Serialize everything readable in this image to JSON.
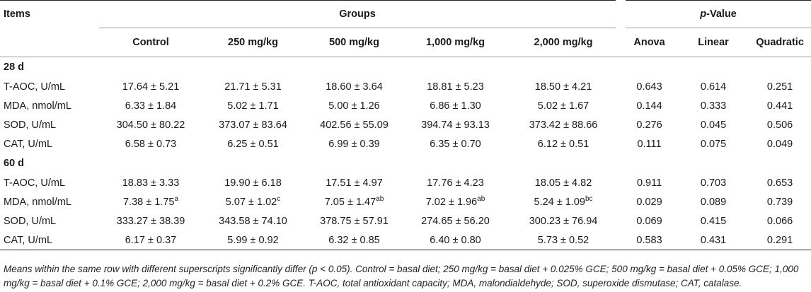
{
  "header": {
    "items": "Items",
    "groups": "Groups",
    "pvalue_italic": "p",
    "pvalue_rest": "-Value",
    "group_cols": [
      "Control",
      "250 mg/kg",
      "500 mg/kg",
      "1,000 mg/kg",
      "2,000 mg/kg"
    ],
    "p_cols": [
      "Anova",
      "Linear",
      "Quadratic"
    ]
  },
  "sections": [
    {
      "label": "28 d",
      "rows": [
        {
          "item": "T-AOC, U/mL",
          "vals": [
            [
              "17.64 ± 5.21",
              ""
            ],
            [
              "21.71 ± 5.31",
              ""
            ],
            [
              "18.60 ± 3.64",
              ""
            ],
            [
              "18.81 ± 5.23",
              ""
            ],
            [
              "18.50 ± 4.21",
              ""
            ]
          ],
          "p": [
            "0.643",
            "0.614",
            "0.251"
          ]
        },
        {
          "item": "MDA, nmol/mL",
          "vals": [
            [
              "6.33 ± 1.84",
              ""
            ],
            [
              "5.02 ± 1.71",
              ""
            ],
            [
              "5.00 ± 1.26",
              ""
            ],
            [
              "6.86 ± 1.30",
              ""
            ],
            [
              "5.02 ± 1.67",
              ""
            ]
          ],
          "p": [
            "0.144",
            "0.333",
            "0.441"
          ]
        },
        {
          "item": "SOD, U/mL",
          "vals": [
            [
              "304.50 ± 80.22",
              ""
            ],
            [
              "373.07 ± 83.64",
              ""
            ],
            [
              "402.56 ± 55.09",
              ""
            ],
            [
              "394.74 ± 93.13",
              ""
            ],
            [
              "373.42 ± 88.66",
              ""
            ]
          ],
          "p": [
            "0.276",
            "0.045",
            "0.506"
          ]
        },
        {
          "item": "CAT, U/mL",
          "vals": [
            [
              "6.58 ± 0.73",
              ""
            ],
            [
              "6.25 ± 0.51",
              ""
            ],
            [
              "6.99 ± 0.39",
              ""
            ],
            [
              "6.35 ± 0.70",
              ""
            ],
            [
              "6.12 ± 0.51",
              ""
            ]
          ],
          "p": [
            "0.111",
            "0.075",
            "0.049"
          ]
        }
      ]
    },
    {
      "label": "60 d",
      "rows": [
        {
          "item": "T-AOC, U/mL",
          "vals": [
            [
              "18.83 ± 3.33",
              ""
            ],
            [
              "19.90 ± 6.18",
              ""
            ],
            [
              "17.51 ± 4.97",
              ""
            ],
            [
              "17.76 ± 4.23",
              ""
            ],
            [
              "18.05 ± 4.82",
              ""
            ]
          ],
          "p": [
            "0.911",
            "0.703",
            "0.653"
          ]
        },
        {
          "item": "MDA, nmol/mL",
          "vals": [
            [
              "7.38 ± 1.75",
              "a"
            ],
            [
              "5.07 ± 1.02",
              "c"
            ],
            [
              "7.05 ± 1.47",
              "ab"
            ],
            [
              "7.02 ± 1.96",
              "ab"
            ],
            [
              "5.24 ± 1.09",
              "bc"
            ]
          ],
          "p": [
            "0.029",
            "0.089",
            "0.739"
          ]
        },
        {
          "item": "SOD, U/mL",
          "vals": [
            [
              "333.27 ± 38.39",
              ""
            ],
            [
              "343.58 ± 74.10",
              ""
            ],
            [
              "378.75 ± 57.91",
              ""
            ],
            [
              "274.65 ± 56.20",
              ""
            ],
            [
              "300.23 ± 76.94",
              ""
            ]
          ],
          "p": [
            "0.069",
            "0.415",
            "0.066"
          ]
        },
        {
          "item": "CAT, U/mL",
          "vals": [
            [
              "6.17 ± 0.37",
              ""
            ],
            [
              "5.99 ± 0.92",
              ""
            ],
            [
              "6.32 ± 0.85",
              ""
            ],
            [
              "6.40 ± 0.80",
              ""
            ],
            [
              "5.73 ± 0.52",
              ""
            ]
          ],
          "p": [
            "0.583",
            "0.431",
            "0.291"
          ]
        }
      ]
    }
  ],
  "footnote": "Means within the same row with different superscripts significantly differ (p < 0.05). Control = basal diet; 250 mg/kg = basal diet + 0.025% GCE; 500 mg/kg = basal diet + 0.05% GCE; 1,000 mg/kg = basal diet + 0.1% GCE; 2,000 mg/kg = basal diet + 0.2% GCE. T-AOC, total antioxidant capacity; MDA, malondialdehyde; SOD, superoxide dismutase; CAT, catalase."
}
